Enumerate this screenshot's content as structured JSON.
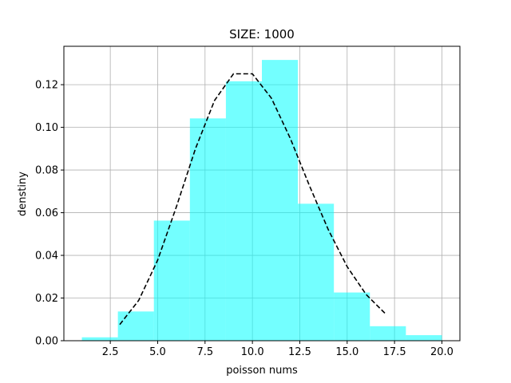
{
  "chart_data": {
    "type": "bar",
    "title": "SIZE: 1000",
    "xlabel": "poisson nums",
    "ylabel": "denstiny",
    "xlim": [
      0.05,
      20.95
    ],
    "ylim": [
      0,
      0.138
    ],
    "grid": true,
    "colors": {
      "bars": "#00ffff",
      "bar_alpha": 0.55,
      "curve": "#000000",
      "grid": "#b0b0b0"
    },
    "xticks": [
      2.5,
      5.0,
      7.5,
      10.0,
      12.5,
      15.0,
      17.5,
      20.0
    ],
    "xtick_labels": [
      "2.5",
      "5.0",
      "7.5",
      "10.0",
      "12.5",
      "15.0",
      "17.5",
      "20.0"
    ],
    "yticks": [
      0.0,
      0.02,
      0.04,
      0.06,
      0.08,
      0.1,
      0.12
    ],
    "ytick_labels": [
      "0.00",
      "0.02",
      "0.04",
      "0.06",
      "0.08",
      "0.10",
      "0.12"
    ],
    "histogram": {
      "bin_edges": [
        1.0,
        2.9,
        4.8,
        6.7,
        8.6,
        10.5,
        12.4,
        14.3,
        16.2,
        18.1,
        20.0
      ],
      "values": [
        0.0016,
        0.0137,
        0.0563,
        0.1042,
        0.1216,
        0.1316,
        0.0642,
        0.0226,
        0.0068,
        0.0026
      ]
    },
    "series": [
      {
        "style": "dashed",
        "x": [
          3,
          4,
          5,
          6,
          7,
          8,
          9,
          10,
          11,
          12,
          13,
          14,
          15,
          16,
          17
        ],
        "y": [
          0.0076,
          0.0189,
          0.0378,
          0.0631,
          0.0901,
          0.1126,
          0.1251,
          0.1251,
          0.1137,
          0.0948,
          0.0729,
          0.0521,
          0.0347,
          0.0217,
          0.0128
        ]
      }
    ]
  }
}
